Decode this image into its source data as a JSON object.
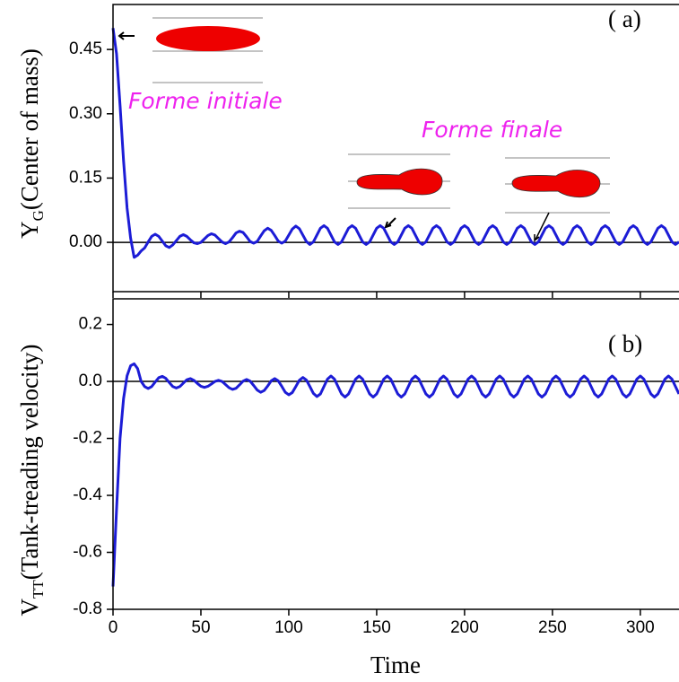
{
  "chart_data": [
    {
      "type": "line",
      "panel_label": "( a)",
      "ylabel": "Y",
      "ylabel_sub": "G",
      "ylabel_rest": "(Center of mass)",
      "annotations": [
        "Forme initiale",
        "Forme finale"
      ],
      "color": "#1c1cd6",
      "hline": 0,
      "xlim": [
        0,
        322
      ],
      "ylim": [
        -0.115,
        0.555
      ],
      "yticks": [
        {
          "value": 0,
          "label": "0.00"
        },
        0.15,
        {
          "value": 0.3,
          "label": "0.30"
        },
        0.45
      ],
      "x": [
        0,
        2,
        4,
        6,
        8,
        10,
        12,
        14,
        16,
        18,
        20,
        22,
        24,
        26,
        28,
        30,
        32,
        34,
        36,
        38,
        40,
        42,
        44,
        46,
        48,
        50,
        52,
        54,
        56,
        58,
        60,
        62,
        64,
        66,
        68,
        70,
        72,
        74,
        76,
        78,
        80,
        82,
        84,
        86,
        88,
        90,
        92,
        94,
        96,
        98,
        100,
        102,
        104,
        106,
        108,
        110,
        112,
        114,
        116,
        118,
        120,
        122,
        124,
        126,
        128,
        130,
        132,
        134,
        136,
        138,
        140,
        142,
        144,
        146,
        148,
        150,
        152,
        154,
        156,
        158,
        160,
        162,
        164,
        166,
        168,
        170,
        172,
        174,
        176,
        178,
        180,
        182,
        184,
        186,
        188,
        190,
        192,
        194,
        196,
        198,
        200,
        202,
        204,
        206,
        208,
        210,
        212,
        214,
        216,
        218,
        220,
        222,
        224,
        226,
        228,
        230,
        232,
        234,
        236,
        238,
        240,
        242,
        244,
        246,
        248,
        250,
        252,
        254,
        256,
        258,
        260,
        262,
        264,
        266,
        268,
        270,
        272,
        274,
        276,
        278,
        280,
        282,
        284,
        286,
        288,
        290,
        292,
        294,
        296,
        298,
        300,
        302,
        304,
        306,
        308,
        310,
        312,
        314,
        316,
        318,
        320,
        322
      ],
      "values": [
        0.5,
        0.44,
        0.32,
        0.19,
        0.08,
        0.01,
        -0.035,
        -0.03,
        -0.02,
        -0.013,
        0.001,
        0.014,
        0.019,
        0.014,
        0.003,
        -0.008,
        -0.012,
        -0.006,
        0.004,
        0.014,
        0.018,
        0.014,
        0.006,
        -0.001,
        -0.003,
        0.0,
        0.008,
        0.016,
        0.02,
        0.017,
        0.009,
        0.001,
        -0.003,
        0.001,
        0.011,
        0.022,
        0.026,
        0.023,
        0.013,
        0.002,
        -0.002,
        0.002,
        0.015,
        0.027,
        0.033,
        0.028,
        0.016,
        0.003,
        -0.002,
        0.003,
        0.017,
        0.031,
        0.038,
        0.032,
        0.017,
        0.002,
        -0.005,
        0.001,
        0.017,
        0.033,
        0.039,
        0.033,
        0.017,
        0.001,
        -0.005,
        0.001,
        0.017,
        0.033,
        0.039,
        0.033,
        0.017,
        0.001,
        -0.005,
        0.001,
        0.017,
        0.033,
        0.039,
        0.033,
        0.017,
        0.001,
        -0.005,
        0.001,
        0.017,
        0.033,
        0.039,
        0.033,
        0.017,
        0.001,
        -0.005,
        0.001,
        0.017,
        0.033,
        0.039,
        0.033,
        0.017,
        0.001,
        -0.005,
        0.001,
        0.017,
        0.033,
        0.039,
        0.033,
        0.017,
        0.001,
        -0.005,
        0.001,
        0.017,
        0.033,
        0.039,
        0.033,
        0.017,
        0.001,
        -0.005,
        0.001,
        0.017,
        0.033,
        0.039,
        0.033,
        0.017,
        0.001,
        -0.005,
        0.001,
        0.017,
        0.033,
        0.039,
        0.033,
        0.017,
        0.001,
        -0.005,
        0.001,
        0.017,
        0.033,
        0.039,
        0.033,
        0.017,
        0.001,
        -0.005,
        0.001,
        0.017,
        0.033,
        0.039,
        0.033,
        0.017,
        0.001,
        -0.005,
        0.001,
        0.017,
        0.033,
        0.039,
        0.033,
        0.017,
        0.001,
        -0.005,
        0.001,
        0.017,
        0.033,
        0.039,
        0.033,
        0.017,
        0.001,
        -0.005,
        0.001
      ]
    },
    {
      "type": "line",
      "panel_label": "( b)",
      "ylabel": "V",
      "ylabel_sub": "TT",
      "ylabel_rest": "(Tank-treading velocity)",
      "xlabel": "Time",
      "color": "#1c1cd6",
      "hline": 0,
      "xlim": [
        0,
        322
      ],
      "ylim": [
        -0.8,
        0.29
      ],
      "xticks": [
        0,
        50,
        100,
        150,
        200,
        250,
        300
      ],
      "yticks": [
        0.2,
        {
          "value": 0,
          "label": "0.0"
        },
        -0.2,
        -0.4,
        -0.6,
        -0.8
      ],
      "x": [
        0,
        2,
        4,
        6,
        8,
        10,
        12,
        14,
        16,
        18,
        20,
        22,
        24,
        26,
        28,
        30,
        32,
        34,
        36,
        38,
        40,
        42,
        44,
        46,
        48,
        50,
        52,
        54,
        56,
        58,
        60,
        62,
        64,
        66,
        68,
        70,
        72,
        74,
        76,
        78,
        80,
        82,
        84,
        86,
        88,
        90,
        92,
        94,
        96,
        98,
        100,
        102,
        104,
        106,
        108,
        110,
        112,
        114,
        116,
        118,
        120,
        122,
        124,
        126,
        128,
        130,
        132,
        134,
        136,
        138,
        140,
        142,
        144,
        146,
        148,
        150,
        152,
        154,
        156,
        158,
        160,
        162,
        164,
        166,
        168,
        170,
        172,
        174,
        176,
        178,
        180,
        182,
        184,
        186,
        188,
        190,
        192,
        194,
        196,
        198,
        200,
        202,
        204,
        206,
        208,
        210,
        212,
        214,
        216,
        218,
        220,
        222,
        224,
        226,
        228,
        230,
        232,
        234,
        236,
        238,
        240,
        242,
        244,
        246,
        248,
        250,
        252,
        254,
        256,
        258,
        260,
        262,
        264,
        266,
        268,
        270,
        272,
        274,
        276,
        278,
        280,
        282,
        284,
        286,
        288,
        290,
        292,
        294,
        296,
        298,
        300,
        302,
        304,
        306,
        308,
        310,
        312,
        314,
        316,
        318,
        320,
        322
      ],
      "values": [
        -0.72,
        -0.45,
        -0.2,
        -0.06,
        0.02,
        0.055,
        0.062,
        0.045,
        0.0,
        -0.018,
        -0.025,
        -0.018,
        -0.002,
        0.013,
        0.018,
        0.011,
        -0.004,
        -0.018,
        -0.023,
        -0.018,
        -0.006,
        0.006,
        0.01,
        0.004,
        -0.007,
        -0.017,
        -0.021,
        -0.017,
        -0.009,
        0.0,
        0.004,
        0.0,
        -0.011,
        -0.022,
        -0.028,
        -0.024,
        -0.012,
        0.001,
        0.007,
        0.001,
        -0.014,
        -0.03,
        -0.038,
        -0.032,
        -0.016,
        0.002,
        0.01,
        0.002,
        -0.017,
        -0.038,
        -0.047,
        -0.039,
        -0.018,
        0.004,
        0.014,
        0.005,
        -0.018,
        -0.042,
        -0.053,
        -0.044,
        -0.018,
        0.008,
        0.019,
        0.008,
        -0.018,
        -0.044,
        -0.055,
        -0.044,
        -0.018,
        0.008,
        0.019,
        0.008,
        -0.018,
        -0.044,
        -0.055,
        -0.044,
        -0.018,
        0.008,
        0.019,
        0.008,
        -0.018,
        -0.044,
        -0.055,
        -0.044,
        -0.018,
        0.008,
        0.019,
        0.008,
        -0.018,
        -0.044,
        -0.055,
        -0.044,
        -0.018,
        0.008,
        0.019,
        0.008,
        -0.018,
        -0.044,
        -0.055,
        -0.044,
        -0.018,
        0.008,
        0.019,
        0.008,
        -0.018,
        -0.044,
        -0.055,
        -0.044,
        -0.018,
        0.008,
        0.019,
        0.008,
        -0.018,
        -0.044,
        -0.055,
        -0.044,
        -0.018,
        0.008,
        0.019,
        0.008,
        -0.018,
        -0.044,
        -0.055,
        -0.044,
        -0.018,
        0.008,
        0.019,
        0.008,
        -0.018,
        -0.044,
        -0.055,
        -0.044,
        -0.018,
        0.008,
        0.019,
        0.008,
        -0.018,
        -0.044,
        -0.055,
        -0.044,
        -0.018,
        0.008,
        0.019,
        0.008,
        -0.018,
        -0.044,
        -0.055,
        -0.044,
        -0.018,
        0.008,
        0.019,
        0.008,
        -0.018,
        -0.044,
        -0.055,
        -0.044,
        -0.018,
        0.008,
        0.019,
        0.008,
        -0.018,
        -0.044
      ]
    }
  ]
}
